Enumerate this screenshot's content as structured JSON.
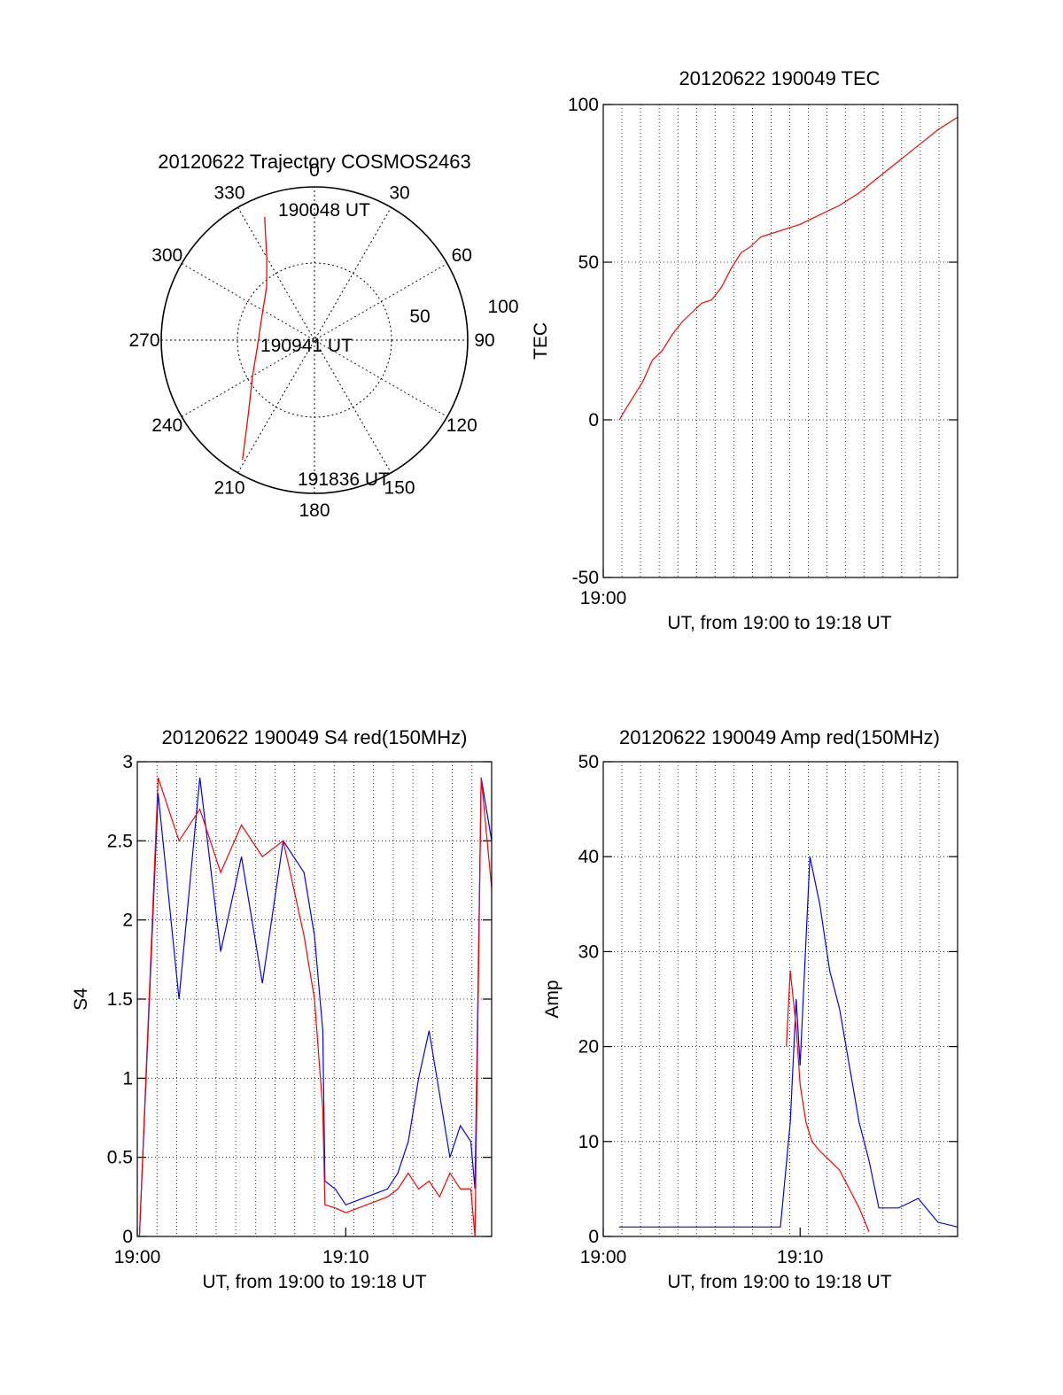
{
  "colors": {
    "red": "#ff0000",
    "blue": "#0000ff",
    "axis": "#000000",
    "grid": "#000000"
  },
  "chart_data": [
    {
      "type": "polar",
      "title": "20120622 Trajectory COSMOS2463",
      "azimuth_labels": [
        "0",
        "30",
        "60",
        "90",
        "120",
        "150",
        "180",
        "210",
        "240",
        "270",
        "300",
        "330"
      ],
      "elevation_ring_labels": [
        "50",
        "100"
      ],
      "annotations": [
        "190048 UT",
        "190941 UT",
        "191836 UT"
      ],
      "series": [
        {
          "color": "red",
          "points": [
            {
              "az": 338,
              "zen": 78
            },
            {
              "az": 335,
              "zen": 68
            },
            {
              "az": 330,
              "zen": 56
            },
            {
              "az": 318,
              "zen": 42
            },
            {
              "az": 295,
              "zen": 34
            },
            {
              "az": 262,
              "zen": 34
            },
            {
              "az": 240,
              "zen": 42
            },
            {
              "az": 222,
              "zen": 58
            },
            {
              "az": 211,
              "zen": 82
            }
          ]
        }
      ]
    },
    {
      "type": "line",
      "title": "20120622 190049 TEC",
      "ylabel": "TEC",
      "xlabel": "UT, from 19:00 to 19:18 UT",
      "xlim": [
        0,
        18
      ],
      "ylim": [
        -50,
        100
      ],
      "xticks": [
        {
          "v": 0,
          "label": "19:00"
        }
      ],
      "yticks": [
        {
          "v": -50,
          "label": "-50"
        },
        {
          "v": 0,
          "label": "0"
        },
        {
          "v": 50,
          "label": "50"
        },
        {
          "v": 100,
          "label": "100"
        }
      ],
      "series": [
        {
          "color": "red",
          "x": [
            0.82,
            1.0,
            1.5,
            2.0,
            2.5,
            3.0,
            3.5,
            4.0,
            4.5,
            5.0,
            5.5,
            6.0,
            6.5,
            7.0,
            7.5,
            8.0,
            8.5,
            9.0,
            9.5,
            10.0,
            11.0,
            12.0,
            13.0,
            14.0,
            15.0,
            16.0,
            17.0,
            17.5,
            18.0
          ],
          "y": [
            0,
            2,
            7,
            12,
            19,
            22,
            27,
            31,
            34,
            37,
            38,
            42,
            48,
            53,
            55,
            58,
            59,
            60,
            61,
            62,
            65,
            68,
            72,
            77,
            82,
            87,
            92,
            94,
            96
          ]
        }
      ]
    },
    {
      "type": "line",
      "title": "20120622 190049 S4 red(150MHz)",
      "ylabel": "S4",
      "xlabel": "UT, from 19:00 to 19:18 UT",
      "xlim": [
        0,
        17
      ],
      "ylim": [
        0,
        3
      ],
      "xticks": [
        {
          "v": 0,
          "label": "19:00"
        },
        {
          "v": 10,
          "label": "19:10"
        }
      ],
      "yticks": [
        {
          "v": 0,
          "label": "0"
        },
        {
          "v": 0.5,
          "label": "0.5"
        },
        {
          "v": 1,
          "label": "1"
        },
        {
          "v": 1.5,
          "label": "1.5"
        },
        {
          "v": 2,
          "label": "2"
        },
        {
          "v": 2.5,
          "label": "2.5"
        },
        {
          "v": 3,
          "label": "3"
        }
      ],
      "series": [
        {
          "color": "blue",
          "x": [
            0.1,
            1.0,
            2.0,
            3.0,
            4.0,
            5.0,
            6.0,
            7.0,
            8.0,
            8.5,
            8.9,
            9.0,
            9.5,
            10.0,
            11.0,
            12.0,
            12.5,
            13.0,
            13.5,
            14.0,
            14.5,
            15.0,
            15.5,
            16.0,
            16.2,
            16.5,
            17.0
          ],
          "y": [
            0.0,
            2.8,
            1.5,
            2.9,
            1.8,
            2.4,
            1.6,
            2.5,
            2.3,
            1.9,
            1.3,
            0.35,
            0.3,
            0.2,
            0.25,
            0.3,
            0.4,
            0.6,
            1.0,
            1.3,
            0.9,
            0.5,
            0.7,
            0.6,
            0.3,
            2.9,
            2.5
          ]
        },
        {
          "color": "red",
          "x": [
            0.1,
            1.0,
            2.0,
            3.0,
            4.0,
            5.0,
            6.0,
            7.0,
            7.5,
            8.0,
            8.5,
            8.9,
            9.0,
            9.5,
            10.0,
            11.0,
            12.0,
            12.5,
            13.0,
            13.5,
            14.0,
            14.5,
            15.0,
            15.5,
            16.0,
            16.2,
            16.5,
            17.0
          ],
          "y": [
            0.0,
            2.9,
            2.5,
            2.7,
            2.3,
            2.6,
            2.4,
            2.5,
            2.2,
            1.9,
            1.5,
            0.8,
            0.2,
            0.18,
            0.15,
            0.2,
            0.25,
            0.3,
            0.4,
            0.3,
            0.35,
            0.25,
            0.4,
            0.3,
            0.3,
            0.0,
            2.9,
            2.2
          ]
        }
      ]
    },
    {
      "type": "line",
      "title": "20120622 190049 Amp red(150MHz)",
      "ylabel": "Amp",
      "xlabel": "UT, from 19:00 to 19:18 UT",
      "xlim": [
        0,
        18
      ],
      "ylim": [
        0,
        50
      ],
      "xticks": [
        {
          "v": 0,
          "label": "19:00"
        },
        {
          "v": 10,
          "label": "19:10"
        }
      ],
      "yticks": [
        {
          "v": 0,
          "label": "0"
        },
        {
          "v": 10,
          "label": "10"
        },
        {
          "v": 20,
          "label": "20"
        },
        {
          "v": 30,
          "label": "30"
        },
        {
          "v": 40,
          "label": "40"
        },
        {
          "v": 50,
          "label": "50"
        }
      ],
      "series": [
        {
          "color": "blue",
          "x": [
            0.8,
            3.0,
            6.0,
            9.0,
            9.5,
            9.8,
            10.0,
            10.5,
            11.0,
            11.5,
            12.0,
            12.5,
            13.0,
            13.5,
            14.0,
            15.0,
            16.0,
            17.0,
            18.0
          ],
          "y": [
            1.0,
            1.0,
            1.0,
            1.0,
            12.0,
            25.0,
            18.0,
            40.0,
            35.0,
            28.0,
            24.0,
            18.0,
            12.0,
            8.0,
            3.0,
            3.0,
            4.0,
            1.5,
            1.0
          ]
        },
        {
          "color": "red",
          "x": [
            9.3,
            9.5,
            9.8,
            10.0,
            10.3,
            10.6,
            11.0,
            11.5,
            12.0,
            12.5,
            13.0,
            13.5
          ],
          "y": [
            20.0,
            28.0,
            22.0,
            16.0,
            12.0,
            10.0,
            9.0,
            8.0,
            7.0,
            5.0,
            3.0,
            0.5
          ]
        }
      ]
    }
  ]
}
